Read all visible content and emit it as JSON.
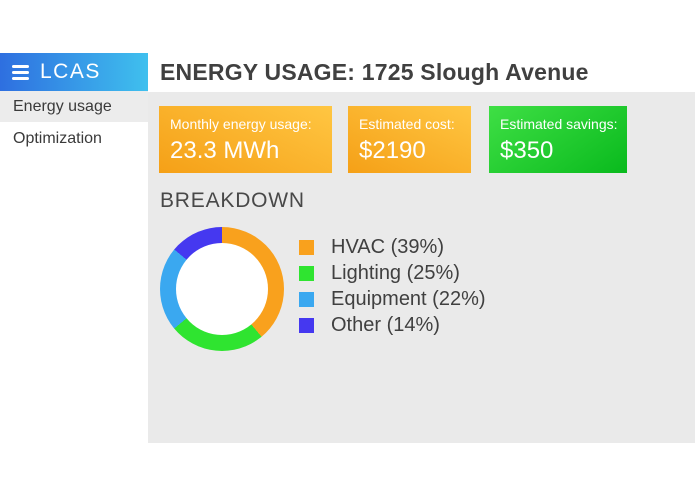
{
  "brand": {
    "name": "LCAS",
    "bar_color_from": "#2e6fe0",
    "bar_color_to": "#3fc0ee"
  },
  "sidebar": {
    "items": [
      {
        "label": "Energy usage",
        "active": true
      },
      {
        "label": "Optimization",
        "active": false
      }
    ]
  },
  "header": {
    "title": "ENERGY USAGE: 1725 Slough Avenue"
  },
  "stat_cards": [
    {
      "label": "Monthly energy usage:",
      "value": "23.3 MWh",
      "accent": "orange"
    },
    {
      "label": "Estimated cost:",
      "value": "$2190",
      "accent": "orange"
    },
    {
      "label": "Estimated savings:",
      "value": "$350",
      "accent": "green"
    }
  ],
  "colors": {
    "orange_card_from": "#ffc642",
    "orange_card_to": "#f5a017",
    "green_card_from": "#3fdf45",
    "green_card_to": "#09ba1d",
    "panel_bg": "#eaeaea"
  },
  "chart_data": {
    "type": "pie",
    "donut": true,
    "title": "BREAKDOWN",
    "categories": [
      "HVAC",
      "Lighting",
      "Equipment",
      "Other"
    ],
    "values": [
      39,
      25,
      22,
      14
    ],
    "unit": "percent",
    "colors": [
      "#f9a11d",
      "#2fe430",
      "#3aa8f0",
      "#4538f0"
    ],
    "legend_position": "right",
    "legend": [
      {
        "label": "HVAC (39%)"
      },
      {
        "label": "Lighting (25%)"
      },
      {
        "label": "Equipment (22%)"
      },
      {
        "label": "Other (14%)"
      }
    ]
  }
}
